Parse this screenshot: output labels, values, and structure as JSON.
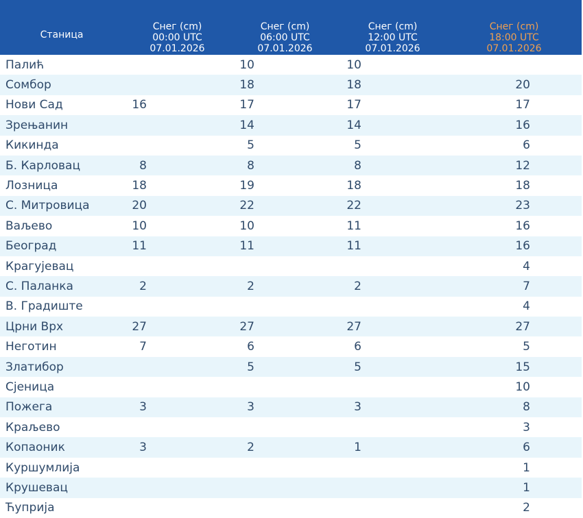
{
  "table": {
    "headers": [
      {
        "label": "Станица"
      },
      {
        "line1": "Снег (cm)",
        "line2": "00:00 UTC",
        "line3": "07.01.2026"
      },
      {
        "line1": "Снег (cm)",
        "line2": "06:00 UTC",
        "line3": "07.01.2026"
      },
      {
        "line1": "Снег (cm)",
        "line2": "12:00 UTC",
        "line3": "07.01.2026"
      },
      {
        "line1": "Снег (cm)",
        "line2": "18:00 UTC",
        "line3": "07.01.2026",
        "highlight": true
      }
    ],
    "colors": {
      "header_bg": "#1f58a8",
      "header_text": "#ffffff",
      "highlight_text": "#f0a050",
      "row_alt_bg": "#e8f5fb",
      "cell_text": "#2f4a6a"
    },
    "rows": [
      {
        "station": "Палић",
        "v00": "",
        "v06": "10",
        "v12": "10",
        "v18": ""
      },
      {
        "station": "Сомбор",
        "v00": "",
        "v06": "18",
        "v12": "18",
        "v18": "20"
      },
      {
        "station": "Нови Сад",
        "v00": "16",
        "v06": "17",
        "v12": "17",
        "v18": "17"
      },
      {
        "station": "Зрењанин",
        "v00": "",
        "v06": "14",
        "v12": "14",
        "v18": "16"
      },
      {
        "station": "Кикинда",
        "v00": "",
        "v06": "5",
        "v12": "5",
        "v18": "6"
      },
      {
        "station": "Б. Карловац",
        "v00": "8",
        "v06": "8",
        "v12": "8",
        "v18": "12"
      },
      {
        "station": "Лозница",
        "v00": "18",
        "v06": "19",
        "v12": "18",
        "v18": "18"
      },
      {
        "station": "С. Митровица",
        "v00": "20",
        "v06": "22",
        "v12": "22",
        "v18": "23"
      },
      {
        "station": "Ваљево",
        "v00": "10",
        "v06": "10",
        "v12": "11",
        "v18": "16"
      },
      {
        "station": "Београд",
        "v00": "11",
        "v06": "11",
        "v12": "11",
        "v18": "16"
      },
      {
        "station": "Крагујевац",
        "v00": "",
        "v06": "",
        "v12": "",
        "v18": "4"
      },
      {
        "station": "С. Паланка",
        "v00": "2",
        "v06": "2",
        "v12": "2",
        "v18": "7"
      },
      {
        "station": "В. Градиште",
        "v00": "",
        "v06": "",
        "v12": "",
        "v18": "4"
      },
      {
        "station": "Црни Врх",
        "v00": "27",
        "v06": "27",
        "v12": "27",
        "v18": "27"
      },
      {
        "station": "Неготин",
        "v00": "7",
        "v06": "6",
        "v12": "6",
        "v18": "5"
      },
      {
        "station": "Златибор",
        "v00": "",
        "v06": "5",
        "v12": "5",
        "v18": "15"
      },
      {
        "station": "Сјеница",
        "v00": "",
        "v06": "",
        "v12": "",
        "v18": "10"
      },
      {
        "station": "Пожега",
        "v00": "3",
        "v06": "3",
        "v12": "3",
        "v18": "8"
      },
      {
        "station": "Краљево",
        "v00": "",
        "v06": "",
        "v12": "",
        "v18": "3"
      },
      {
        "station": "Копаоник",
        "v00": "3",
        "v06": "2",
        "v12": "1",
        "v18": "6"
      },
      {
        "station": "Куршумлија",
        "v00": "",
        "v06": "",
        "v12": "",
        "v18": "1"
      },
      {
        "station": "Крушевац",
        "v00": "",
        "v06": "",
        "v12": "",
        "v18": "1"
      },
      {
        "station": "Ћуприја",
        "v00": "",
        "v06": "",
        "v12": "",
        "v18": "2"
      }
    ]
  }
}
